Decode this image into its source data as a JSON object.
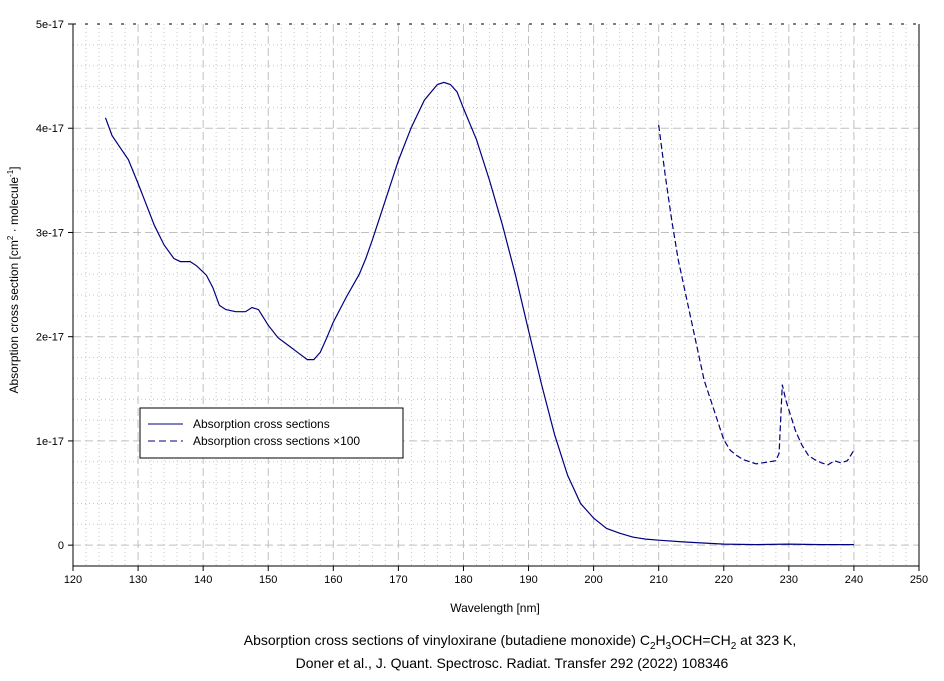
{
  "chart_data": {
    "type": "line",
    "xlabel": "Wavelength [nm]",
    "ylabel": {
      "pre": "Absorption cross section [cm",
      "sup1": "2",
      "mid": " · molecule",
      "sup2": "-1",
      "post": "]"
    },
    "xlim": [
      120,
      250
    ],
    "ylim": [
      -2e-18,
      5e-17
    ],
    "x_ticks": [
      120,
      130,
      140,
      150,
      160,
      170,
      180,
      190,
      200,
      210,
      220,
      230,
      240,
      250
    ],
    "y_ticks": [
      {
        "v": 0,
        "label": "0"
      },
      {
        "v": 1e-17,
        "label": "1e-17"
      },
      {
        "v": 2e-17,
        "label": "2e-17"
      },
      {
        "v": 3e-17,
        "label": "3e-17"
      },
      {
        "v": 4e-17,
        "label": "4e-17"
      },
      {
        "v": 5e-17,
        "label": "5e-17"
      }
    ],
    "grid": true,
    "legend_position": "lower-left",
    "line_color": "#000080",
    "series": [
      {
        "name": "Absorption cross sections",
        "style": "solid",
        "x": [
          125,
          126,
          127.5,
          128.5,
          130,
          131,
          132.5,
          134,
          135.5,
          136.5,
          138,
          139,
          140.5,
          141.5,
          142.5,
          143.5,
          145,
          146.5,
          147.5,
          148.5,
          150,
          151.5,
          153,
          154.5,
          156,
          157,
          158,
          159,
          160,
          162,
          164,
          165,
          166,
          168,
          170,
          172,
          174,
          176,
          177,
          178,
          179,
          180,
          182,
          184,
          186,
          188,
          190,
          192,
          194,
          196,
          198,
          200,
          202,
          204,
          206,
          208,
          210,
          214,
          220,
          225,
          230,
          235,
          240
        ],
        "y": [
          4.1e-17,
          3.93e-17,
          3.79e-17,
          3.7e-17,
          3.47e-17,
          3.31e-17,
          3.07e-17,
          2.88e-17,
          2.75e-17,
          2.72e-17,
          2.72e-17,
          2.68e-17,
          2.59e-17,
          2.47e-17,
          2.3e-17,
          2.26e-17,
          2.24e-17,
          2.24e-17,
          2.28e-17,
          2.26e-17,
          2.11e-17,
          1.99e-17,
          1.92e-17,
          1.85e-17,
          1.78e-17,
          1.78e-17,
          1.85e-17,
          1.99e-17,
          2.14e-17,
          2.38e-17,
          2.6e-17,
          2.75e-17,
          2.93e-17,
          3.31e-17,
          3.69e-17,
          4.01e-17,
          4.27e-17,
          4.42e-17,
          4.44e-17,
          4.42e-17,
          4.35e-17,
          4.19e-17,
          3.89e-17,
          3.5e-17,
          3.07e-17,
          2.59e-17,
          2.06e-17,
          1.54e-17,
          1.06e-17,
          6.7e-18,
          4e-18,
          2.6e-18,
          1.6e-18,
          1.15e-18,
          7.7e-19,
          5.8e-19,
          4.8e-19,
          3e-19,
          1e-19,
          5e-20,
          1e-19,
          5e-20,
          5e-20
        ]
      },
      {
        "name": "Absorption cross sections ×100",
        "style": "dashed",
        "x": [
          210,
          211,
          212,
          213,
          214,
          215,
          216,
          217,
          218,
          219,
          220,
          221,
          222,
          223,
          224,
          225,
          226,
          227,
          228,
          228.5,
          229,
          229.5,
          230,
          231,
          232,
          233,
          234,
          235,
          236,
          237,
          238,
          239,
          240
        ],
        "y": [
          4.03e-17,
          3.55e-17,
          3.12e-17,
          2.74e-17,
          2.45e-17,
          2.16e-17,
          1.87e-17,
          1.58e-17,
          1.39e-17,
          1.2e-17,
          1.01e-17,
          9.1e-18,
          8.6e-18,
          8.2e-18,
          8e-18,
          7.8e-18,
          7.9e-18,
          8e-18,
          8.1e-18,
          8.8e-18,
          1.54e-17,
          1.4e-17,
          1.3e-17,
          1.1e-17,
          9.6e-18,
          8.6e-18,
          8.2e-18,
          7.9e-18,
          7.7e-18,
          8.1e-18,
          7.9e-18,
          8.1e-18,
          9.1e-18
        ]
      }
    ]
  },
  "caption": {
    "line1": [
      {
        "t": "Absorption cross sections of vinyloxirane (butadiene monoxide) C"
      },
      {
        "t": "2",
        "sub": true
      },
      {
        "t": "H"
      },
      {
        "t": "3",
        "sub": true
      },
      {
        "t": "OCH=CH"
      },
      {
        "t": "2",
        "sub": true
      },
      {
        "t": " at 323 K,"
      }
    ],
    "line2": "Doner et al., J. Quant. Spectrosc. Radiat. Transfer 292 (2022) 108346"
  }
}
